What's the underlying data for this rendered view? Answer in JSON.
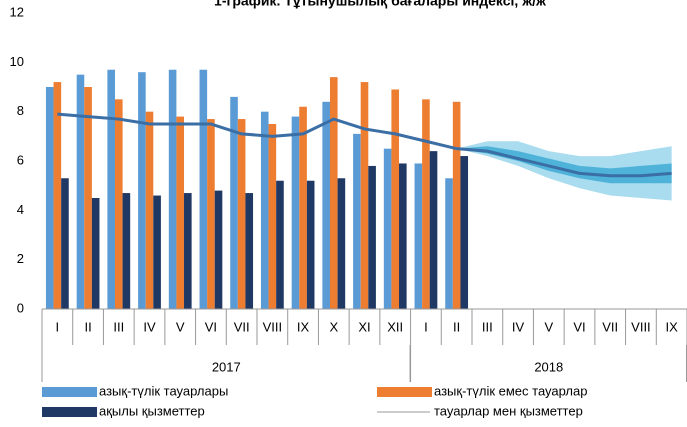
{
  "chart_data": {
    "type": "bar",
    "title": "1-график. Тұтынушылық бағалары индексі, ж/ж",
    "categories": [
      "I",
      "II",
      "III",
      "IV",
      "V",
      "VI",
      "VII",
      "VIII",
      "IX",
      "X",
      "XI",
      "XII",
      "I",
      "II",
      "III",
      "IV",
      "V",
      "VI",
      "VII",
      "VIII",
      "IX"
    ],
    "groups": [
      {
        "label": "2017",
        "count": 12
      },
      {
        "label": "2018",
        "count": 9
      }
    ],
    "series": [
      {
        "name": "азық-түлік тауарлары",
        "color": "#5b9bd5",
        "kind": "bar",
        "values": [
          9.0,
          9.5,
          9.7,
          9.6,
          9.7,
          9.7,
          8.6,
          8.0,
          7.8,
          8.4,
          7.1,
          6.5,
          5.9,
          5.3,
          null,
          null,
          null,
          null,
          null,
          null,
          null
        ]
      },
      {
        "name": "азық-түлік емес тауарлар",
        "color": "#ed7d31",
        "kind": "bar",
        "values": [
          9.2,
          9.0,
          8.5,
          8.0,
          7.8,
          7.7,
          7.7,
          7.5,
          8.2,
          9.4,
          9.2,
          8.9,
          8.5,
          8.4,
          null,
          null,
          null,
          null,
          null,
          null,
          null
        ]
      },
      {
        "name": "ақылы қызметтер",
        "color": "#1f3864",
        "kind": "bar",
        "values": [
          5.3,
          4.5,
          4.7,
          4.6,
          4.7,
          4.8,
          4.7,
          5.2,
          5.2,
          5.3,
          5.8,
          5.9,
          6.4,
          6.2,
          null,
          null,
          null,
          null,
          null,
          null,
          null
        ]
      },
      {
        "name": "тауарлар мен қызметтер",
        "color": "#3a6ea5",
        "kind": "line",
        "values": [
          7.9,
          7.8,
          7.7,
          7.5,
          7.5,
          7.5,
          7.1,
          7.0,
          7.1,
          7.7,
          7.3,
          7.1,
          6.8,
          6.5,
          6.4,
          6.1,
          5.8,
          5.5,
          5.4,
          5.4,
          5.5
        ]
      }
    ],
    "fan": [
      {
        "color": "#a9dcef",
        "lower": [
          null,
          null,
          null,
          null,
          null,
          null,
          null,
          null,
          null,
          null,
          null,
          null,
          null,
          6.5,
          6.2,
          5.8,
          5.3,
          4.9,
          4.6,
          4.5,
          4.4
        ],
        "upper": [
          null,
          null,
          null,
          null,
          null,
          null,
          null,
          null,
          null,
          null,
          null,
          null,
          null,
          6.5,
          6.8,
          6.8,
          6.4,
          6.2,
          6.2,
          6.4,
          6.6
        ]
      },
      {
        "color": "#4fb3d9",
        "lower": [
          null,
          null,
          null,
          null,
          null,
          null,
          null,
          null,
          null,
          null,
          null,
          null,
          null,
          6.5,
          6.3,
          6.0,
          5.6,
          5.3,
          5.1,
          5.1,
          5.1
        ],
        "upper": [
          null,
          null,
          null,
          null,
          null,
          null,
          null,
          null,
          null,
          null,
          null,
          null,
          null,
          6.5,
          6.6,
          6.4,
          6.1,
          5.8,
          5.7,
          5.8,
          5.9
        ]
      }
    ],
    "ylim": [
      0,
      12
    ],
    "yticks": [
      0,
      2,
      4,
      6,
      8,
      10,
      12
    ],
    "grid": false
  }
}
